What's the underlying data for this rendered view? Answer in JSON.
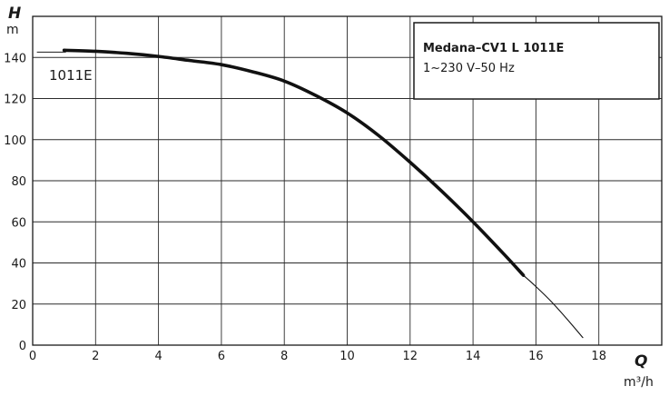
{
  "chart_data": {
    "type": "line",
    "xlabel": {
      "symbol": "Q",
      "unit": "m³/h"
    },
    "ylabel": {
      "symbol": "H",
      "unit": "m"
    },
    "xlim": [
      0,
      20
    ],
    "ylim": [
      0,
      160
    ],
    "x_ticks": [
      "0",
      "2",
      "4",
      "6",
      "8",
      "10",
      "12",
      "14",
      "16",
      "18"
    ],
    "y_ticks": [
      "0",
      "20",
      "40",
      "60",
      "80",
      "100",
      "120",
      "140"
    ],
    "grid": true,
    "info_box": {
      "title": "Medana–CV1 L 1011E",
      "subtitle": "1~230 V–50 Hz",
      "placement": "top-right"
    },
    "series": [
      {
        "name": "1011E",
        "x": [
          1.0,
          2.0,
          3.0,
          4.0,
          5.0,
          6.0,
          7.0,
          8.0,
          9.0,
          10.0,
          11.0,
          12.0,
          13.0,
          14.0,
          15.0,
          15.6
        ],
        "y": [
          143.5,
          143.0,
          142.0,
          140.5,
          138.5,
          136.5,
          133.0,
          128.5,
          121.5,
          113.0,
          102.0,
          89.0,
          75.0,
          60.0,
          44.0,
          34.0
        ],
        "extension": {
          "x": [
            15.6,
            16.0,
            16.5,
            17.0,
            17.5
          ],
          "y": [
            34.0,
            28.5,
            21.0,
            12.5,
            3.5
          ]
        }
      }
    ]
  }
}
